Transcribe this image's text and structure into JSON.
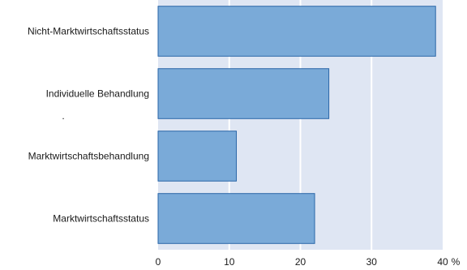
{
  "chart_data": {
    "type": "bar",
    "orientation": "horizontal",
    "categories": [
      "Nicht-Marktwirtschaftsstatus",
      "Individuelle Behandlung",
      "Marktwirtschaftsbehandlung",
      "Marktwirtschaftsstatus"
    ],
    "values": [
      39,
      24,
      11,
      22
    ],
    "xlim": [
      0,
      40
    ],
    "xticks": [
      "0",
      "10",
      "20",
      "30",
      "40"
    ],
    "x_unit": "%",
    "stray_mark": ".",
    "grid": true,
    "colors": {
      "plot_background": "#dfe6f3",
      "bar_fill": "#7aaad8",
      "bar_stroke": "#2a66a8",
      "gridline": "#ffffff"
    }
  }
}
